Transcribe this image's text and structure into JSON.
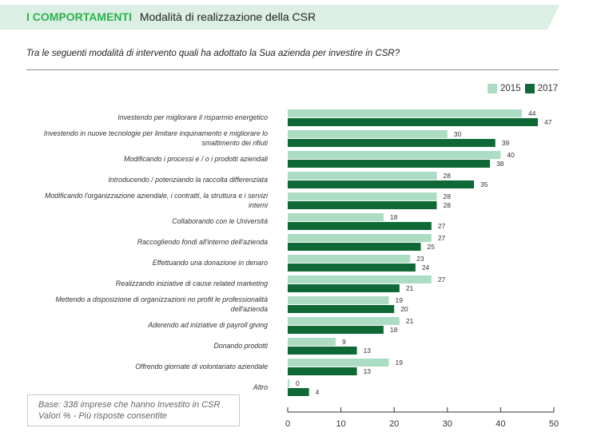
{
  "header": {
    "section": "I COMPORTAMENTI",
    "title": "Modalità di realizzazione della CSR"
  },
  "question": "Tra le seguenti modalità di intervento quali ha adottato la Sua azienda per investire in CSR?",
  "note": {
    "line1": "Base: 338 imprese che hanno investito in CSR",
    "line2": "Valori % - Più risposte consentite"
  },
  "chart_data": {
    "type": "bar",
    "orientation": "horizontal",
    "title": "Modalità di realizzazione della CSR",
    "xlabel": "",
    "ylabel": "",
    "xlim": [
      0,
      50
    ],
    "xticks": [
      0,
      10,
      20,
      30,
      40,
      50
    ],
    "grid": false,
    "legend_position": "top-right",
    "colors": {
      "2015": "#acdcc3",
      "2017": "#0f6937"
    },
    "categories": [
      [
        "Investendo per migliorare il risparmio energetico"
      ],
      [
        "Investendo in nuove tecnologie per limitare inquinamento e migliorare lo",
        "smaltimento dei rifiuti"
      ],
      [
        "Modificando i processi e / o i prodotti aziendali"
      ],
      [
        "Introducendo / potenziando la raccolta differenziata"
      ],
      [
        "Modificando l'organizzazione aziendale, i contratti, la struttura e i servizi",
        "interni"
      ],
      [
        "Collaborando con le Università"
      ],
      [
        "Raccogliendo fondi all'interno dell'azienda"
      ],
      [
        "Effettuando una donazione in denaro"
      ],
      [
        "Realizzando iniziative di cause related marketing"
      ],
      [
        "Mettendo a disposizione di organizzazioni no profit le professionalità",
        "dell'azienda"
      ],
      [
        "Aderendo ad iniziative di payroll giving"
      ],
      [
        "Donando prodotti"
      ],
      [
        "Offrendo giornate di volontariato aziendale"
      ],
      [
        "Altro"
      ]
    ],
    "series": [
      {
        "name": "2015",
        "values": [
          44,
          30,
          40,
          28,
          28,
          18,
          27,
          23,
          27,
          19,
          21,
          9,
          19,
          0
        ]
      },
      {
        "name": "2017",
        "values": [
          47,
          39,
          38,
          35,
          28,
          27,
          25,
          24,
          21,
          20,
          18,
          13,
          13,
          4
        ]
      }
    ]
  }
}
